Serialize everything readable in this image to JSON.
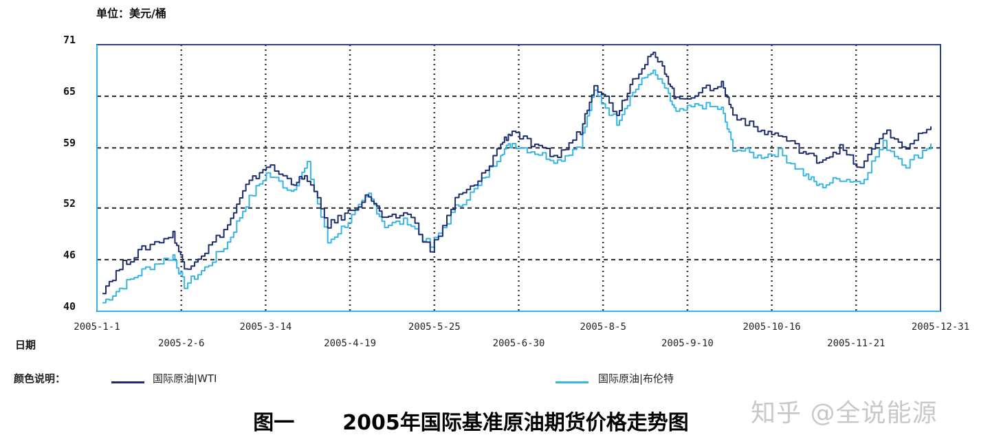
{
  "unit_label": "单位：美元/桶",
  "xaxis_label": "日期",
  "legend": {
    "title": "颜色说明：",
    "items": [
      {
        "label": "国际原油|WTI",
        "color": "#1a2a6c"
      },
      {
        "label": "国际原油|布伦特",
        "color": "#33b5e8"
      }
    ]
  },
  "caption": {
    "figure": "图一",
    "title": "2005年国际基准原油期货价格走势图"
  },
  "watermark": "知乎 @全说能源",
  "chart_data": {
    "type": "line",
    "title": "2005年国际基准原油期货价格走势图",
    "xlabel": "日期",
    "ylabel": "单位：美元/桶",
    "ylim": [
      40,
      71
    ],
    "yticks": [
      71,
      65,
      59,
      52,
      46,
      40
    ],
    "xticks_top": [
      "2005-1-1",
      "2005-3-14",
      "2005-5-25",
      "2005-8-5",
      "2005-10-16",
      "2005-12-31"
    ],
    "xticks_bottom": [
      "2005-2-6",
      "2005-4-19",
      "2005-6-30",
      "2005-9-10",
      "2005-11-21"
    ],
    "grid": true,
    "legend_position": "bottom",
    "x": [
      "2005-01-01",
      "2005-01-10",
      "2005-01-20",
      "2005-02-01",
      "2005-02-06",
      "2005-02-15",
      "2005-02-25",
      "2005-03-05",
      "2005-03-14",
      "2005-03-25",
      "2005-04-01",
      "2005-04-10",
      "2005-04-19",
      "2005-04-28",
      "2005-05-05",
      "2005-05-15",
      "2005-05-25",
      "2005-06-05",
      "2005-06-15",
      "2005-06-25",
      "2005-06-30",
      "2005-07-10",
      "2005-07-20",
      "2005-07-30",
      "2005-08-05",
      "2005-08-15",
      "2005-08-22",
      "2005-08-30",
      "2005-09-05",
      "2005-09-10",
      "2005-09-20",
      "2005-09-30",
      "2005-10-05",
      "2005-10-16",
      "2005-10-25",
      "2005-11-05",
      "2005-11-12",
      "2005-11-21",
      "2005-11-30",
      "2005-12-10",
      "2005-12-20",
      "2005-12-31"
    ],
    "series": [
      {
        "name": "国际原油|WTI",
        "color": "#1a2a6c",
        "values": [
          42.5,
          45.5,
          47.5,
          49.0,
          45.0,
          47.0,
          50.0,
          54.5,
          57.0,
          55.0,
          55.5,
          50.0,
          51.5,
          53.5,
          50.5,
          51.5,
          47.0,
          53.0,
          55.0,
          59.5,
          61.0,
          59.0,
          58.0,
          61.0,
          66.5,
          63.0,
          67.0,
          70.0,
          68.0,
          64.5,
          65.5,
          66.5,
          63.0,
          61.0,
          60.5,
          58.5,
          57.5,
          59.0,
          56.5,
          61.0,
          59.0,
          61.5
        ]
      },
      {
        "name": "国际原油|布伦特",
        "color": "#33b5e8",
        "values": [
          41.0,
          43.0,
          45.0,
          46.5,
          43.0,
          45.0,
          48.0,
          52.5,
          56.0,
          54.0,
          57.0,
          48.0,
          50.5,
          53.5,
          50.0,
          50.5,
          47.5,
          52.0,
          54.5,
          58.5,
          59.5,
          58.5,
          57.5,
          59.5,
          65.5,
          62.0,
          65.5,
          68.0,
          66.0,
          63.0,
          64.0,
          63.5,
          59.0,
          58.0,
          58.5,
          56.0,
          54.5,
          55.5,
          55.0,
          59.5,
          57.0,
          59.5
        ]
      }
    ]
  }
}
